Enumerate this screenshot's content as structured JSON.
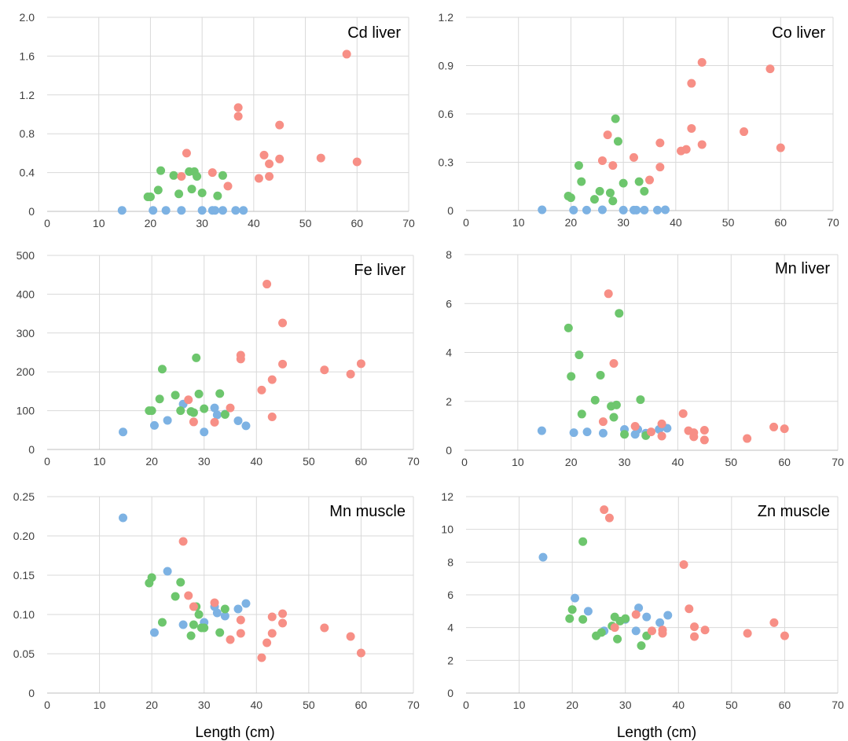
{
  "colors": {
    "blue": "#7db2e3",
    "green": "#6dc66d",
    "red": "#f78f86"
  },
  "chart_data": [
    {
      "type": "scatter",
      "title": "Cd liver",
      "xlabel": "",
      "xlim": [
        0,
        70
      ],
      "xticks": [
        0,
        10,
        20,
        30,
        40,
        50,
        60,
        70
      ],
      "ylim": [
        0,
        2.0
      ],
      "yticks": [
        "0",
        "0.4",
        "0.8",
        "1.2",
        "1.6",
        "2.0"
      ],
      "grid": true,
      "series": [
        {
          "color": "blue",
          "x": [
            14.5,
            20.5,
            23,
            26,
            30,
            32,
            32.5,
            34,
            36.5,
            38
          ],
          "y": [
            0.01,
            0.01,
            0.01,
            0.01,
            0.01,
            0.01,
            0.01,
            0.01,
            0.01,
            0.01
          ]
        },
        {
          "color": "green",
          "x": [
            19.5,
            20,
            21.5,
            22,
            24.5,
            25.5,
            27.5,
            28,
            28.5,
            29,
            30,
            33,
            34
          ],
          "y": [
            0.15,
            0.15,
            0.22,
            0.42,
            0.37,
            0.18,
            0.41,
            0.23,
            0.41,
            0.36,
            0.19,
            0.16,
            0.37
          ]
        },
        {
          "color": "red",
          "x": [
            26,
            27,
            32,
            35,
            37,
            37,
            41,
            42,
            43,
            43,
            45,
            45,
            53,
            58,
            60
          ],
          "y": [
            0.36,
            0.6,
            0.4,
            0.26,
            1.07,
            0.98,
            0.34,
            0.58,
            0.49,
            0.36,
            0.89,
            0.54,
            0.55,
            1.62,
            0.51
          ]
        }
      ]
    },
    {
      "type": "scatter",
      "title": "Co liver",
      "xlabel": "",
      "xlim": [
        0,
        70
      ],
      "xticks": [
        0,
        10,
        20,
        30,
        40,
        50,
        60,
        70
      ],
      "ylim": [
        0,
        1.2
      ],
      "yticks": [
        "0",
        "0.3",
        "0.6",
        "0.9",
        "1.2"
      ],
      "grid": true,
      "series": [
        {
          "color": "blue",
          "x": [
            14.5,
            20.5,
            23,
            26,
            30,
            32,
            32.5,
            34,
            36.5,
            38
          ],
          "y": [
            0.005,
            0.003,
            0.003,
            0.005,
            0.003,
            0.003,
            0.003,
            0.003,
            0.003,
            0.005
          ]
        },
        {
          "color": "green",
          "x": [
            19.5,
            20,
            21.5,
            22,
            24.5,
            25.5,
            27.5,
            28,
            28.5,
            29,
            30,
            33,
            34
          ],
          "y": [
            0.09,
            0.08,
            0.28,
            0.18,
            0.07,
            0.12,
            0.11,
            0.06,
            0.57,
            0.43,
            0.17,
            0.18,
            0.12
          ]
        },
        {
          "color": "red",
          "x": [
            26,
            27,
            28,
            32,
            35,
            37,
            37,
            41,
            42,
            43,
            43,
            45,
            45,
            53,
            58,
            60
          ],
          "y": [
            0.31,
            0.47,
            0.28,
            0.33,
            0.19,
            0.42,
            0.27,
            0.37,
            0.38,
            0.79,
            0.51,
            0.41,
            0.92,
            0.49,
            0.88,
            0.39
          ]
        }
      ]
    },
    {
      "type": "scatter",
      "title": "Fe liver",
      "xlabel": "",
      "xlim": [
        0,
        70
      ],
      "xticks": [
        0,
        10,
        20,
        30,
        40,
        50,
        60,
        70
      ],
      "ylim": [
        0,
        500
      ],
      "yticks": [
        "0",
        "100",
        "200",
        "300",
        "400",
        "500"
      ],
      "grid": true,
      "series": [
        {
          "color": "blue",
          "x": [
            14.5,
            20.5,
            23,
            26,
            30,
            32,
            32.5,
            34,
            36.5,
            38
          ],
          "y": [
            45,
            62,
            75,
            117,
            45,
            107,
            89,
            91,
            74,
            61
          ]
        },
        {
          "color": "green",
          "x": [
            19.5,
            20,
            21.5,
            22,
            24.5,
            25.5,
            27.5,
            28,
            28.5,
            29,
            30,
            33,
            34
          ],
          "y": [
            100,
            100,
            130,
            207,
            140,
            100,
            98,
            95,
            236,
            143,
            105,
            144,
            90
          ]
        },
        {
          "color": "red",
          "x": [
            27,
            28,
            32,
            35,
            37,
            37,
            41,
            42,
            43,
            43,
            45,
            45,
            53,
            58,
            60
          ],
          "y": [
            128,
            71,
            70,
            107,
            243,
            233,
            153,
            426,
            180,
            84,
            326,
            220,
            205,
            194,
            221
          ]
        }
      ]
    },
    {
      "type": "scatter",
      "title": "Mn liver",
      "xlabel": "",
      "xlim": [
        0,
        70
      ],
      "xticks": [
        0,
        10,
        20,
        30,
        40,
        50,
        60,
        70
      ],
      "ylim": [
        0,
        8
      ],
      "yticks": [
        "0",
        "2",
        "4",
        "6",
        "8"
      ],
      "grid": true,
      "series": [
        {
          "color": "blue",
          "x": [
            14.5,
            20.5,
            23,
            26,
            30,
            32,
            32.5,
            34,
            36.5,
            38
          ],
          "y": [
            0.8,
            0.72,
            0.75,
            0.7,
            0.85,
            0.65,
            0.85,
            0.7,
            0.85,
            0.9
          ]
        },
        {
          "color": "green",
          "x": [
            19.5,
            20,
            21.5,
            22,
            24.5,
            25.5,
            27.5,
            28,
            28.5,
            29,
            30,
            33,
            34
          ],
          "y": [
            5,
            3.02,
            3.9,
            1.48,
            2.05,
            3.07,
            1.8,
            1.35,
            1.85,
            5.6,
            0.65,
            2.07,
            0.6
          ]
        },
        {
          "color": "red",
          "x": [
            26,
            27,
            28,
            32,
            35,
            37,
            37,
            41,
            42,
            43,
            43,
            45,
            45,
            53,
            58,
            60
          ],
          "y": [
            1.17,
            6.4,
            3.55,
            0.98,
            0.75,
            1.08,
            0.58,
            1.5,
            0.8,
            0.72,
            0.55,
            0.82,
            0.42,
            0.48,
            0.95,
            0.88
          ]
        }
      ]
    },
    {
      "type": "scatter",
      "title": "Mn muscle",
      "xlabel": "Length (cm)",
      "xlim": [
        0,
        70
      ],
      "xticks": [
        0,
        10,
        20,
        30,
        40,
        50,
        60,
        70
      ],
      "ylim": [
        0,
        0.25
      ],
      "yticks": [
        "0",
        "0.05",
        "0.10",
        "0.15",
        "0.20",
        "0.25"
      ],
      "grid": true,
      "series": [
        {
          "color": "blue",
          "x": [
            14.5,
            20.5,
            23,
            26,
            30,
            32,
            32.5,
            34,
            36.5,
            38
          ],
          "y": [
            0.223,
            0.077,
            0.155,
            0.087,
            0.09,
            0.11,
            0.102,
            0.098,
            0.107,
            0.114
          ]
        },
        {
          "color": "green",
          "x": [
            19.5,
            20,
            22,
            24.5,
            25.5,
            27.5,
            28,
            28.5,
            29,
            29.5,
            30,
            33,
            34
          ],
          "y": [
            0.14,
            0.147,
            0.09,
            0.123,
            0.141,
            0.073,
            0.087,
            0.11,
            0.1,
            0.083,
            0.083,
            0.077,
            0.107
          ]
        },
        {
          "color": "red",
          "x": [
            26,
            27,
            28,
            32,
            35,
            37,
            37,
            41,
            42,
            43,
            43,
            45,
            45,
            53,
            58,
            60
          ],
          "y": [
            0.193,
            0.124,
            0.11,
            0.115,
            0.068,
            0.093,
            0.076,
            0.045,
            0.064,
            0.097,
            0.076,
            0.101,
            0.089,
            0.083,
            0.072,
            0.051
          ]
        }
      ]
    },
    {
      "type": "scatter",
      "title": "Zn muscle",
      "xlabel": "Length (cm)",
      "xlim": [
        0,
        70
      ],
      "xticks": [
        0,
        10,
        20,
        30,
        40,
        50,
        60,
        70
      ],
      "ylim": [
        0,
        12
      ],
      "yticks": [
        "0",
        "2",
        "4",
        "6",
        "8",
        "10",
        "12"
      ],
      "grid": true,
      "series": [
        {
          "color": "blue",
          "x": [
            14.5,
            20.5,
            23,
            26,
            30,
            32,
            32.5,
            34,
            36.5,
            38
          ],
          "y": [
            8.3,
            5.8,
            5,
            3.8,
            4.5,
            3.8,
            5.2,
            4.65,
            4.3,
            4.75
          ]
        },
        {
          "color": "green",
          "x": [
            19.5,
            20,
            22,
            22,
            24.5,
            25.5,
            27.5,
            28,
            28.5,
            29,
            30,
            33,
            34
          ],
          "y": [
            4.55,
            5.1,
            4.5,
            9.25,
            3.5,
            3.7,
            4.1,
            4.65,
            3.3,
            4.4,
            4.55,
            2.9,
            3.5
          ]
        },
        {
          "color": "red",
          "x": [
            26,
            27,
            28,
            32,
            35,
            37,
            37,
            41,
            42,
            43,
            43,
            45,
            53,
            58,
            60
          ],
          "y": [
            11.2,
            10.7,
            4,
            4.8,
            3.8,
            3.85,
            3.65,
            7.85,
            5.15,
            4.05,
            3.45,
            3.85,
            3.65,
            4.3,
            3.5
          ]
        }
      ]
    }
  ]
}
